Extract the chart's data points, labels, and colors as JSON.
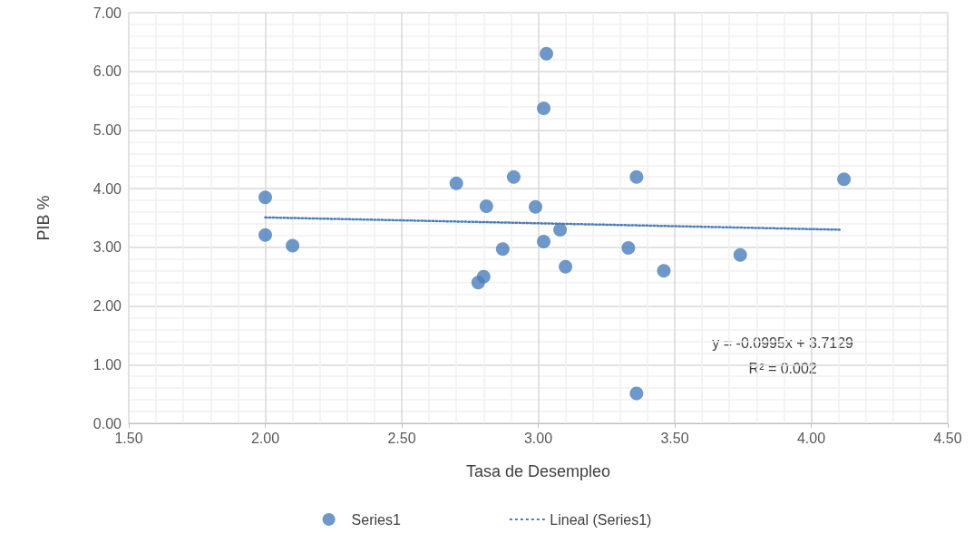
{
  "chart_data": {
    "type": "scatter",
    "xlabel": "Tasa de Desempleo",
    "ylabel": "PIB %",
    "series": [
      {
        "name": "Series1",
        "color": "#4a7ebb",
        "marker": "circle",
        "x": [
          2.0,
          2.0,
          2.1,
          2.7,
          2.81,
          2.91,
          2.87,
          2.8,
          2.78,
          2.99,
          3.02,
          3.03,
          3.02,
          3.08,
          3.1,
          3.33,
          3.36,
          3.46,
          3.36,
          3.74,
          4.12
        ],
        "values": [
          3.85,
          3.21,
          3.03,
          4.09,
          3.7,
          4.2,
          2.97,
          2.5,
          2.4,
          3.69,
          5.37,
          6.3,
          3.1,
          3.3,
          2.67,
          2.99,
          4.2,
          2.6,
          0.51,
          2.87,
          4.16
        ]
      },
      {
        "name": "Lineal (Series1)",
        "type": "line",
        "color": "#4a7ebb",
        "marker": "none",
        "line_style": "dotted",
        "x": [
          2.0,
          4.11
        ],
        "values": [
          3.51,
          3.3
        ]
      }
    ],
    "xlim": [
      1.5,
      4.5
    ],
    "xticks": [
      {
        "value": 1.5,
        "label": "1.50"
      },
      {
        "value": 2,
        "label": "2.00"
      },
      {
        "value": 2.5,
        "label": "2.50"
      },
      {
        "value": 3,
        "label": "3.00"
      },
      {
        "value": 3.5,
        "label": "3.50"
      },
      {
        "value": 4,
        "label": "4.00"
      },
      {
        "value": 4.5,
        "label": "4.50"
      }
    ],
    "ylim": [
      0,
      7
    ],
    "yticks": [
      {
        "value": 0,
        "label": "0.00"
      },
      {
        "value": 1,
        "label": "1.00"
      },
      {
        "value": 2,
        "label": "2.00"
      },
      {
        "value": 3,
        "label": "3.00"
      },
      {
        "value": 4,
        "label": "4.00"
      },
      {
        "value": 5,
        "label": "5.00"
      },
      {
        "value": 6,
        "label": "6.00"
      },
      {
        "value": 7,
        "label": "7.00"
      }
    ],
    "grid": true,
    "legend": "bottom",
    "annotations": [
      "y = -0.0995x + 3.7129\nR² = 0.002"
    ]
  }
}
